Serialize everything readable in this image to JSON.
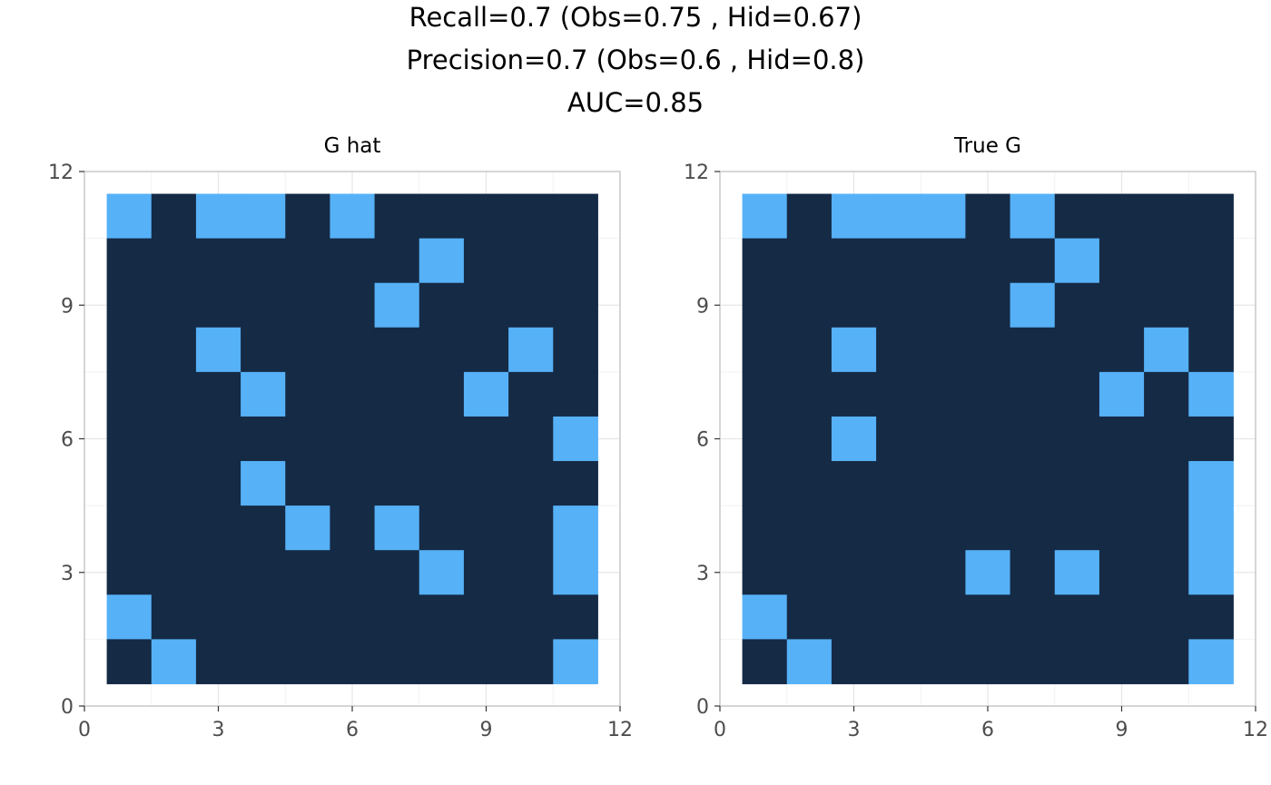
{
  "title_lines": [
    "Recall=0.7 (Obs=0.75 , Hid=0.67)",
    "Precision=0.7 (Obs=0.6 , Hid=0.8)",
    "AUC=0.85"
  ],
  "colors": {
    "background_cell": "#152a45",
    "edge_cell": "#56b1f7",
    "panel_border": "#bfbfbf",
    "grid_major": "#e6e6e6",
    "grid_minor": "#f2f2f2",
    "tick_text": "#4d4d4d"
  },
  "chart_data": [
    {
      "type": "heatmap",
      "title": "G hat",
      "xlim": [
        0,
        12
      ],
      "ylim": [
        0,
        12
      ],
      "xticks": [
        0,
        3,
        6,
        9,
        12
      ],
      "yticks": [
        0,
        3,
        6,
        9,
        12
      ],
      "grid": true,
      "value_note": "1 = edge (light blue), 0 = no edge (dark navy); rows listed from y=11 down to y=1, columns x=1..11",
      "x": [
        1,
        2,
        3,
        4,
        5,
        6,
        7,
        8,
        9,
        10,
        11
      ],
      "y": [
        11,
        10,
        9,
        8,
        7,
        6,
        5,
        4,
        3,
        2,
        1
      ],
      "matrix": [
        [
          1,
          0,
          1,
          1,
          0,
          1,
          0,
          0,
          0,
          0,
          0
        ],
        [
          0,
          0,
          0,
          0,
          0,
          0,
          0,
          1,
          0,
          0,
          0
        ],
        [
          0,
          0,
          0,
          0,
          0,
          0,
          1,
          0,
          0,
          0,
          0
        ],
        [
          0,
          0,
          1,
          0,
          0,
          0,
          0,
          0,
          0,
          1,
          0
        ],
        [
          0,
          0,
          0,
          1,
          0,
          0,
          0,
          0,
          1,
          0,
          0
        ],
        [
          0,
          0,
          0,
          0,
          0,
          0,
          0,
          0,
          0,
          0,
          1
        ],
        [
          0,
          0,
          0,
          1,
          0,
          0,
          0,
          0,
          0,
          0,
          0
        ],
        [
          0,
          0,
          0,
          0,
          1,
          0,
          1,
          0,
          0,
          0,
          1
        ],
        [
          0,
          0,
          0,
          0,
          0,
          0,
          0,
          1,
          0,
          0,
          1
        ],
        [
          1,
          0,
          0,
          0,
          0,
          0,
          0,
          0,
          0,
          0,
          0
        ],
        [
          0,
          1,
          0,
          0,
          0,
          0,
          0,
          0,
          0,
          0,
          1
        ]
      ]
    },
    {
      "type": "heatmap",
      "title": "True G",
      "xlim": [
        0,
        12
      ],
      "ylim": [
        0,
        12
      ],
      "xticks": [
        0,
        3,
        6,
        9,
        12
      ],
      "yticks": [
        0,
        3,
        6,
        9,
        12
      ],
      "grid": true,
      "value_note": "1 = edge (light blue), 0 = no edge (dark navy); rows listed from y=11 down to y=1, columns x=1..11",
      "x": [
        1,
        2,
        3,
        4,
        5,
        6,
        7,
        8,
        9,
        10,
        11
      ],
      "y": [
        11,
        10,
        9,
        8,
        7,
        6,
        5,
        4,
        3,
        2,
        1
      ],
      "matrix": [
        [
          1,
          0,
          1,
          1,
          1,
          0,
          1,
          0,
          0,
          0,
          0
        ],
        [
          0,
          0,
          0,
          0,
          0,
          0,
          0,
          1,
          0,
          0,
          0
        ],
        [
          0,
          0,
          0,
          0,
          0,
          0,
          1,
          0,
          0,
          0,
          0
        ],
        [
          0,
          0,
          1,
          0,
          0,
          0,
          0,
          0,
          0,
          1,
          0
        ],
        [
          0,
          0,
          0,
          0,
          0,
          0,
          0,
          0,
          1,
          0,
          1
        ],
        [
          0,
          0,
          1,
          0,
          0,
          0,
          0,
          0,
          0,
          0,
          0
        ],
        [
          0,
          0,
          0,
          0,
          0,
          0,
          0,
          0,
          0,
          0,
          1
        ],
        [
          0,
          0,
          0,
          0,
          0,
          0,
          0,
          0,
          0,
          0,
          1
        ],
        [
          0,
          0,
          0,
          0,
          0,
          1,
          0,
          1,
          0,
          0,
          1
        ],
        [
          1,
          0,
          0,
          0,
          0,
          0,
          0,
          0,
          0,
          0,
          0
        ],
        [
          0,
          1,
          0,
          0,
          0,
          0,
          0,
          0,
          0,
          0,
          1
        ]
      ]
    }
  ]
}
